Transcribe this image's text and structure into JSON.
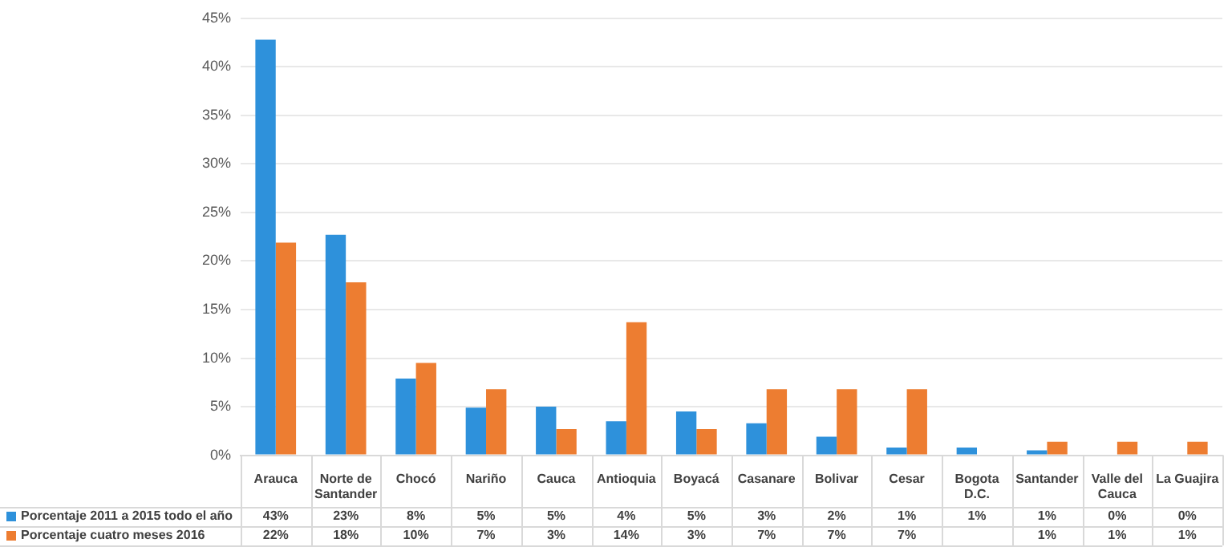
{
  "chart_data": {
    "type": "bar",
    "categories": [
      "Arauca",
      "Norte de Santander",
      "Chocó",
      "Nariño",
      "Cauca",
      "Antioquia",
      "Boyacá",
      "Casanare",
      "Bolivar",
      "Cesar",
      "Bogota D.C.",
      "Santander",
      "Valle del Cauca",
      "La Guajira"
    ],
    "series": [
      {
        "name": "Porcentaje 2011 a 2015 todo el año",
        "color": "#2e91db",
        "values": [
          42.8,
          22.7,
          7.9,
          4.9,
          5.0,
          3.5,
          4.5,
          3.3,
          1.9,
          0.8,
          0.8,
          0.5,
          0.1,
          0
        ],
        "value_labels": [
          "43%",
          "23%",
          "8%",
          "5%",
          "5%",
          "4%",
          "5%",
          "3%",
          "2%",
          "1%",
          "1%",
          "1%",
          "0%",
          "0%"
        ]
      },
      {
        "name": "Porcentaje cuatro meses 2016",
        "color": "#ed7d31",
        "values": [
          21.9,
          17.8,
          9.5,
          6.8,
          2.7,
          13.7,
          2.7,
          6.8,
          6.8,
          6.8,
          null,
          1.4,
          1.4,
          1.4
        ],
        "value_labels": [
          "22%",
          "18%",
          "10%",
          "7%",
          "3%",
          "14%",
          "3%",
          "7%",
          "7%",
          "7%",
          null,
          "1%",
          "1%",
          "1%"
        ]
      }
    ],
    "ylim": [
      0,
      45
    ],
    "yticks": [
      {
        "value": 0,
        "label": "0%"
      },
      {
        "value": 5,
        "label": "5%"
      },
      {
        "value": 10,
        "label": "10%"
      },
      {
        "value": 15,
        "label": "15%"
      },
      {
        "value": 20,
        "label": "20%"
      },
      {
        "value": 25,
        "label": "25%"
      },
      {
        "value": 30,
        "label": "30%"
      },
      {
        "value": 35,
        "label": "35%"
      },
      {
        "value": 40,
        "label": "40%"
      },
      {
        "value": 45,
        "label": "45%"
      }
    ],
    "grid": "y",
    "legend": "bottom"
  }
}
